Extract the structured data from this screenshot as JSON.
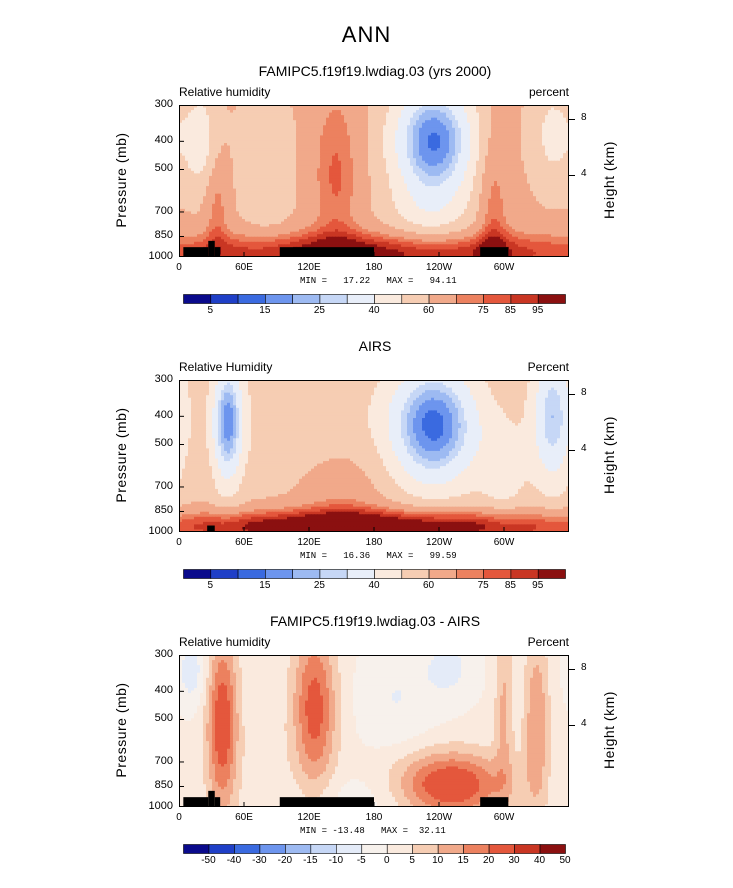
{
  "season": "ANN",
  "panels": [
    {
      "title": "FAMIPC5.f19f19.lwdiag.03 (yrs 2000)",
      "left_label": "Relative humidity",
      "right_label": "percent",
      "minmax": "MIN =   17.22   MAX =   94.11",
      "colorbar_labels": [
        "5",
        "15",
        "25",
        "40",
        "60",
        "75",
        "85",
        "95"
      ]
    },
    {
      "title": "AIRS",
      "left_label": "Relative Humidity",
      "right_label": "Percent",
      "minmax": "MIN =   16.36   MAX =   99.59",
      "colorbar_labels": [
        "5",
        "15",
        "25",
        "40",
        "60",
        "75",
        "85",
        "95"
      ]
    },
    {
      "title": "FAMIPC5.f19f19.lwdiag.03 - AIRS",
      "left_label": "Relative humidity",
      "right_label": "Percent",
      "minmax": "MIN = -13.48   MAX =  32.11",
      "colorbar_labels": [
        "-50",
        "-40",
        "-30",
        "-20",
        "-15",
        "-10",
        "-5",
        "0",
        "5",
        "10",
        "15",
        "20",
        "30",
        "40",
        "50"
      ]
    }
  ],
  "axes": {
    "ylabel": "Pressure (mb)",
    "y2label": "Height (km)",
    "yticks": [
      "300",
      "400",
      "500",
      "700",
      "850",
      "1000"
    ],
    "xticks": [
      "0",
      "60E",
      "120E",
      "180",
      "120W",
      "60W"
    ],
    "y2ticks": [
      "8",
      "4"
    ]
  },
  "colors": {
    "abs_scale": [
      "#0a0a8c",
      "#1f3fc7",
      "#3a6ae0",
      "#6d95ee",
      "#9dbaf2",
      "#c6d7f6",
      "#e8eef9",
      "#faeade",
      "#f6cdb3",
      "#f1a98a",
      "#ec815f",
      "#e4573c",
      "#c93623",
      "#8b1010"
    ],
    "diff_scale": [
      "#0a0a8c",
      "#1f3fc7",
      "#3a6ae0",
      "#6d95ee",
      "#9dbaf2",
      "#c6d7f6",
      "#e4ebf8",
      "#f7f1ec",
      "#faeade",
      "#f6cdb3",
      "#f1a98a",
      "#ec815f",
      "#e4573c",
      "#c93623",
      "#8b1010"
    ],
    "topography": "#000000"
  },
  "chart_data": [
    {
      "type": "heatmap",
      "title": "FAMIPC5.f19f19.lwdiag.03 (yrs 2000)",
      "quantity": "Relative humidity",
      "units": "percent",
      "xlabel": "",
      "ylabel": "Pressure (mb)",
      "y2label": "Height (km)",
      "min": 17.22,
      "max": 94.11,
      "levels": [
        5,
        10,
        15,
        20,
        25,
        30,
        40,
        50,
        60,
        70,
        75,
        80,
        85,
        90,
        95
      ],
      "x_lon": [
        0,
        60,
        120,
        180,
        240,
        300
      ],
      "y_pressure": [
        300,
        400,
        500,
        700,
        850,
        1000
      ],
      "approx_values": [
        {
          "lon": 20,
          "p": 400,
          "rh": 45
        },
        {
          "lon": 80,
          "p": 500,
          "rh": 50
        },
        {
          "lon": 140,
          "p": 500,
          "rh": 72
        },
        {
          "lon": 235,
          "p": 400,
          "rh": 15
        },
        {
          "lon": 310,
          "p": 500,
          "rh": 55
        },
        {
          "lon": 150,
          "p": 950,
          "rh": 90
        },
        {
          "lon": 290,
          "p": 950,
          "rh": 93
        }
      ]
    },
    {
      "type": "heatmap",
      "title": "AIRS",
      "quantity": "Relative Humidity",
      "units": "Percent",
      "xlabel": "",
      "ylabel": "Pressure (mb)",
      "y2label": "Height (km)",
      "min": 16.36,
      "max": 99.59,
      "levels": [
        5,
        10,
        15,
        20,
        25,
        30,
        40,
        50,
        60,
        70,
        75,
        80,
        85,
        90,
        95
      ],
      "x_lon": [
        0,
        60,
        120,
        180,
        240,
        300
      ],
      "y_pressure": [
        300,
        400,
        500,
        700,
        850,
        1000
      ],
      "approx_values": [
        {
          "lon": 45,
          "p": 400,
          "rh": 20
        },
        {
          "lon": 100,
          "p": 500,
          "rh": 55
        },
        {
          "lon": 235,
          "p": 420,
          "rh": 15
        },
        {
          "lon": 345,
          "p": 400,
          "rh": 25
        },
        {
          "lon": 150,
          "p": 950,
          "rh": 95
        },
        {
          "lon": 270,
          "p": 950,
          "rh": 92
        }
      ]
    },
    {
      "type": "heatmap",
      "title": "FAMIPC5.f19f19.lwdiag.03 - AIRS",
      "quantity": "Relative humidity",
      "units": "Percent",
      "xlabel": "",
      "ylabel": "Pressure (mb)",
      "y2label": "Height (km)",
      "min": -13.48,
      "max": 32.11,
      "levels": [
        -50,
        -40,
        -30,
        -20,
        -15,
        -10,
        -5,
        0,
        5,
        10,
        15,
        20,
        30,
        40,
        50
      ],
      "x_lon": [
        0,
        60,
        120,
        180,
        240,
        300
      ],
      "y_pressure": [
        300,
        400,
        500,
        700,
        850,
        1000
      ],
      "approx_values": [
        {
          "lon": 40,
          "p": 500,
          "rh": 22
        },
        {
          "lon": 125,
          "p": 450,
          "rh": 20
        },
        {
          "lon": 250,
          "p": 850,
          "rh": 25
        },
        {
          "lon": 330,
          "p": 500,
          "rh": 10
        },
        {
          "lon": 200,
          "p": 420,
          "rh": -5
        },
        {
          "lon": 10,
          "p": 350,
          "rh": -8
        }
      ]
    }
  ]
}
